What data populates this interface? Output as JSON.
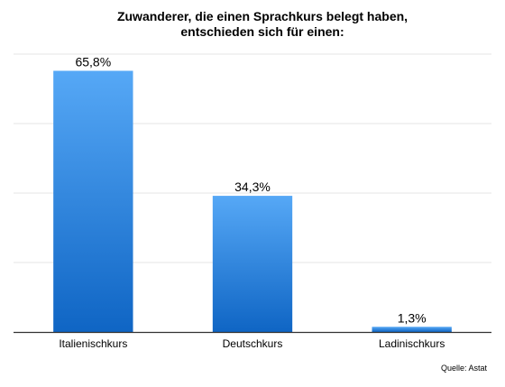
{
  "chart_data": {
    "type": "bar",
    "title_lines": [
      "Zuwanderer, die einen Sprachkurs belegt haben,",
      "entschieden sich für einen:"
    ],
    "categories": [
      "Italienischkurs",
      "Deutschkurs",
      "Ladinischkurs"
    ],
    "values": [
      65.8,
      34.3,
      1.3
    ],
    "value_labels": [
      "65,8%",
      "34,3%",
      "1,3%"
    ],
    "ylim": [
      0,
      70
    ],
    "grid": true,
    "bar_color_top": "#56a8f6",
    "bar_color_bottom": "#0f65c4"
  },
  "source": "Quelle: Astat"
}
